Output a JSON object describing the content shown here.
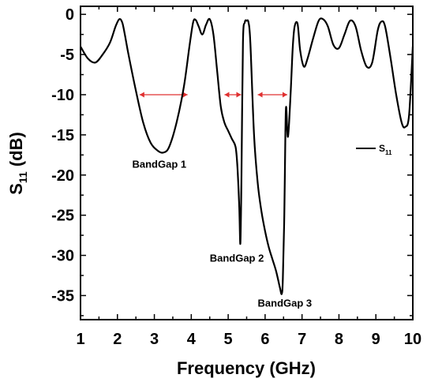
{
  "chart_data": {
    "type": "line",
    "xlabel": "Frequency (GHz)",
    "ylabel_main": "S",
    "ylabel_sub": "11",
    "ylabel_unit": " (dB)",
    "xlim": [
      1,
      10
    ],
    "ylim": [
      -38,
      1
    ],
    "xticks": [
      "1",
      "2",
      "3",
      "4",
      "5",
      "6",
      "7",
      "8",
      "9",
      "10"
    ],
    "yticks": [
      "0",
      "-5",
      "-10",
      "-15",
      "-20",
      "-25",
      "-30",
      "-35"
    ],
    "legend": {
      "label_main": "S",
      "label_sub": "11",
      "placement": "right"
    },
    "series": [
      {
        "name": "S11",
        "color": "#000000",
        "x": [
          1.0,
          1.2,
          1.4,
          1.6,
          1.8,
          1.95,
          2.05,
          2.13,
          2.2,
          2.3,
          2.5,
          2.7,
          2.9,
          3.1,
          3.25,
          3.4,
          3.6,
          3.8,
          3.95,
          4.05,
          4.12,
          4.2,
          4.3,
          4.4,
          4.5,
          4.6,
          4.7,
          4.8,
          4.9,
          5.0,
          5.1,
          5.2,
          5.25,
          5.3,
          5.33,
          5.36,
          5.4,
          5.45,
          5.5,
          5.55,
          5.6,
          5.7,
          5.8,
          5.9,
          6.0,
          6.1,
          6.2,
          6.3,
          6.4,
          6.45,
          6.48,
          6.52,
          6.55,
          6.57,
          6.6,
          6.62,
          6.65,
          6.7,
          6.75,
          6.8,
          6.88,
          6.95,
          7.05,
          7.15,
          7.3,
          7.45,
          7.57,
          7.7,
          7.85,
          8.0,
          8.15,
          8.3,
          8.45,
          8.6,
          8.75,
          8.9,
          9.05,
          9.15,
          9.25,
          9.4,
          9.55,
          9.7,
          9.8,
          9.9,
          10.0
        ],
        "y": [
          -4.0,
          -5.5,
          -6.0,
          -5.0,
          -3.5,
          -1.5,
          -0.6,
          -1.0,
          -2.5,
          -5.0,
          -9.5,
          -13.5,
          -16.0,
          -17.0,
          -17.2,
          -16.5,
          -13.5,
          -9.0,
          -4.0,
          -1.0,
          -0.7,
          -1.5,
          -2.5,
          -1.3,
          -0.6,
          -2.5,
          -7.0,
          -11.5,
          -13.5,
          -14.5,
          -15.5,
          -16.5,
          -19.0,
          -24.0,
          -28.5,
          -20.0,
          -3.5,
          -1.0,
          -0.8,
          -1.0,
          -3.5,
          -15.0,
          -21.0,
          -24.5,
          -27.0,
          -29.0,
          -30.5,
          -32.0,
          -34.0,
          -34.8,
          -33.0,
          -25.0,
          -14.5,
          -11.5,
          -14.5,
          -15.2,
          -13.5,
          -9.0,
          -4.0,
          -1.5,
          -1.2,
          -4.5,
          -6.5,
          -5.5,
          -3.0,
          -0.8,
          -0.6,
          -1.5,
          -3.8,
          -4.2,
          -2.5,
          -0.8,
          -1.5,
          -4.5,
          -6.5,
          -6.0,
          -2.0,
          -0.9,
          -1.5,
          -5.5,
          -10.0,
          -13.5,
          -14.0,
          -12.5,
          -4.0
        ]
      }
    ],
    "arrows": [
      {
        "x1": 2.6,
        "x2": 3.9,
        "y": -10
      },
      {
        "x1": 4.9,
        "x2": 5.35,
        "y": -10
      },
      {
        "x1": 5.8,
        "x2": 6.6,
        "y": -10
      }
    ],
    "arrow_color": "#e03030",
    "annotations": [
      {
        "text": "BandGap 1",
        "x": 2.4,
        "y": -19.1
      },
      {
        "text": "BandGap 2",
        "x": 4.5,
        "y": -30.8
      },
      {
        "text": "BandGap 3",
        "x": 5.8,
        "y": -36.4
      }
    ]
  }
}
